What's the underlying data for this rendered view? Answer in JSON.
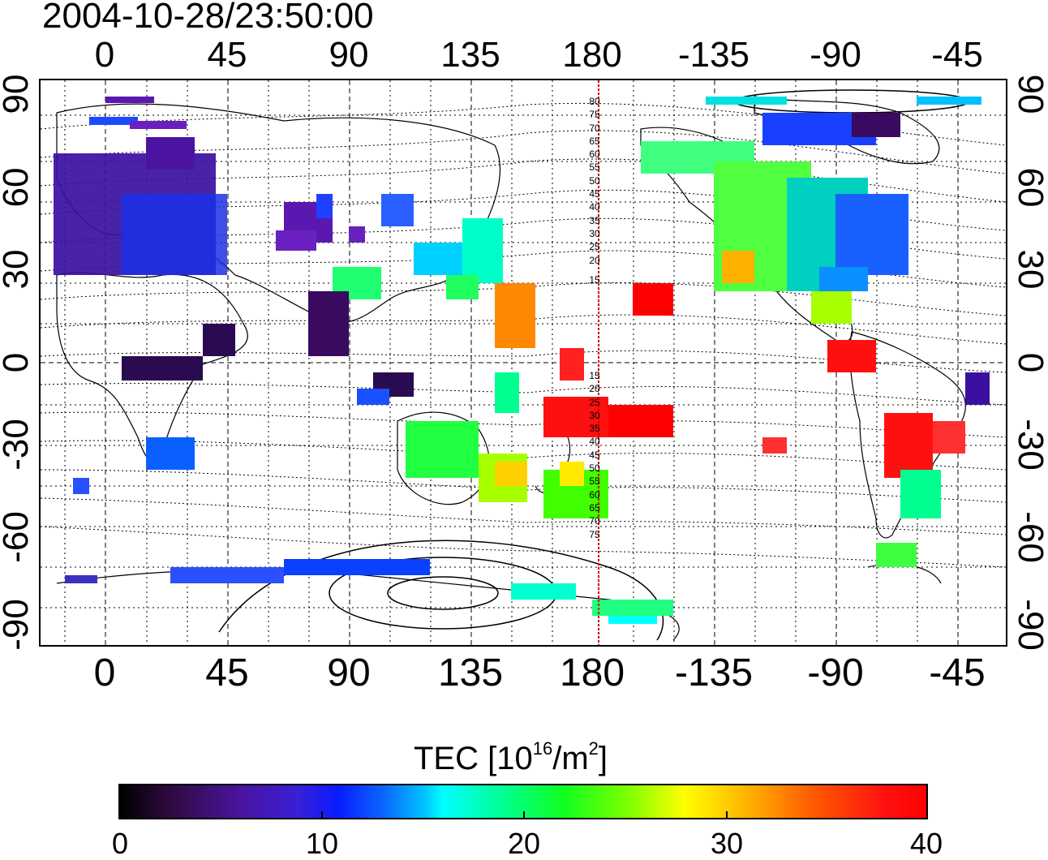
{
  "timestamp": "2004-10-28/23:50:00",
  "longitude_ticks": {
    "top": [
      "0",
      "45",
      "90",
      "135",
      "180",
      "-135",
      "-90",
      "-45"
    ],
    "bottom": [
      "0",
      "45",
      "90",
      "135",
      "180",
      "-135",
      "-90",
      "-45"
    ]
  },
  "latitude_ticks": {
    "left": [
      "90",
      "60",
      "30",
      "0",
      "-30",
      "-60",
      "-90"
    ],
    "right": [
      "90",
      "60",
      "30",
      "0",
      "-30",
      "-60",
      "-90"
    ]
  },
  "meridian_labels_north": [
    "80",
    "75",
    "70",
    "65",
    "60",
    "55",
    "50",
    "45",
    "40",
    "35",
    "30",
    "25",
    "20",
    "15"
  ],
  "meridian_labels_south": [
    "15",
    "20",
    "25",
    "30",
    "35",
    "40",
    "45",
    "50",
    "55",
    "60",
    "65",
    "70",
    "75"
  ],
  "colorbar": {
    "title": "TEC  [10",
    "title_exp": "16",
    "title_mid": "/m",
    "title_exp2": "2",
    "title_end": "]",
    "ticks": [
      "0",
      "10",
      "20",
      "30",
      "40"
    ],
    "range": [
      0,
      40
    ]
  },
  "colors": {
    "meridian_line": "#cc0000",
    "low": "#000000",
    "high": "#ff0000"
  }
}
